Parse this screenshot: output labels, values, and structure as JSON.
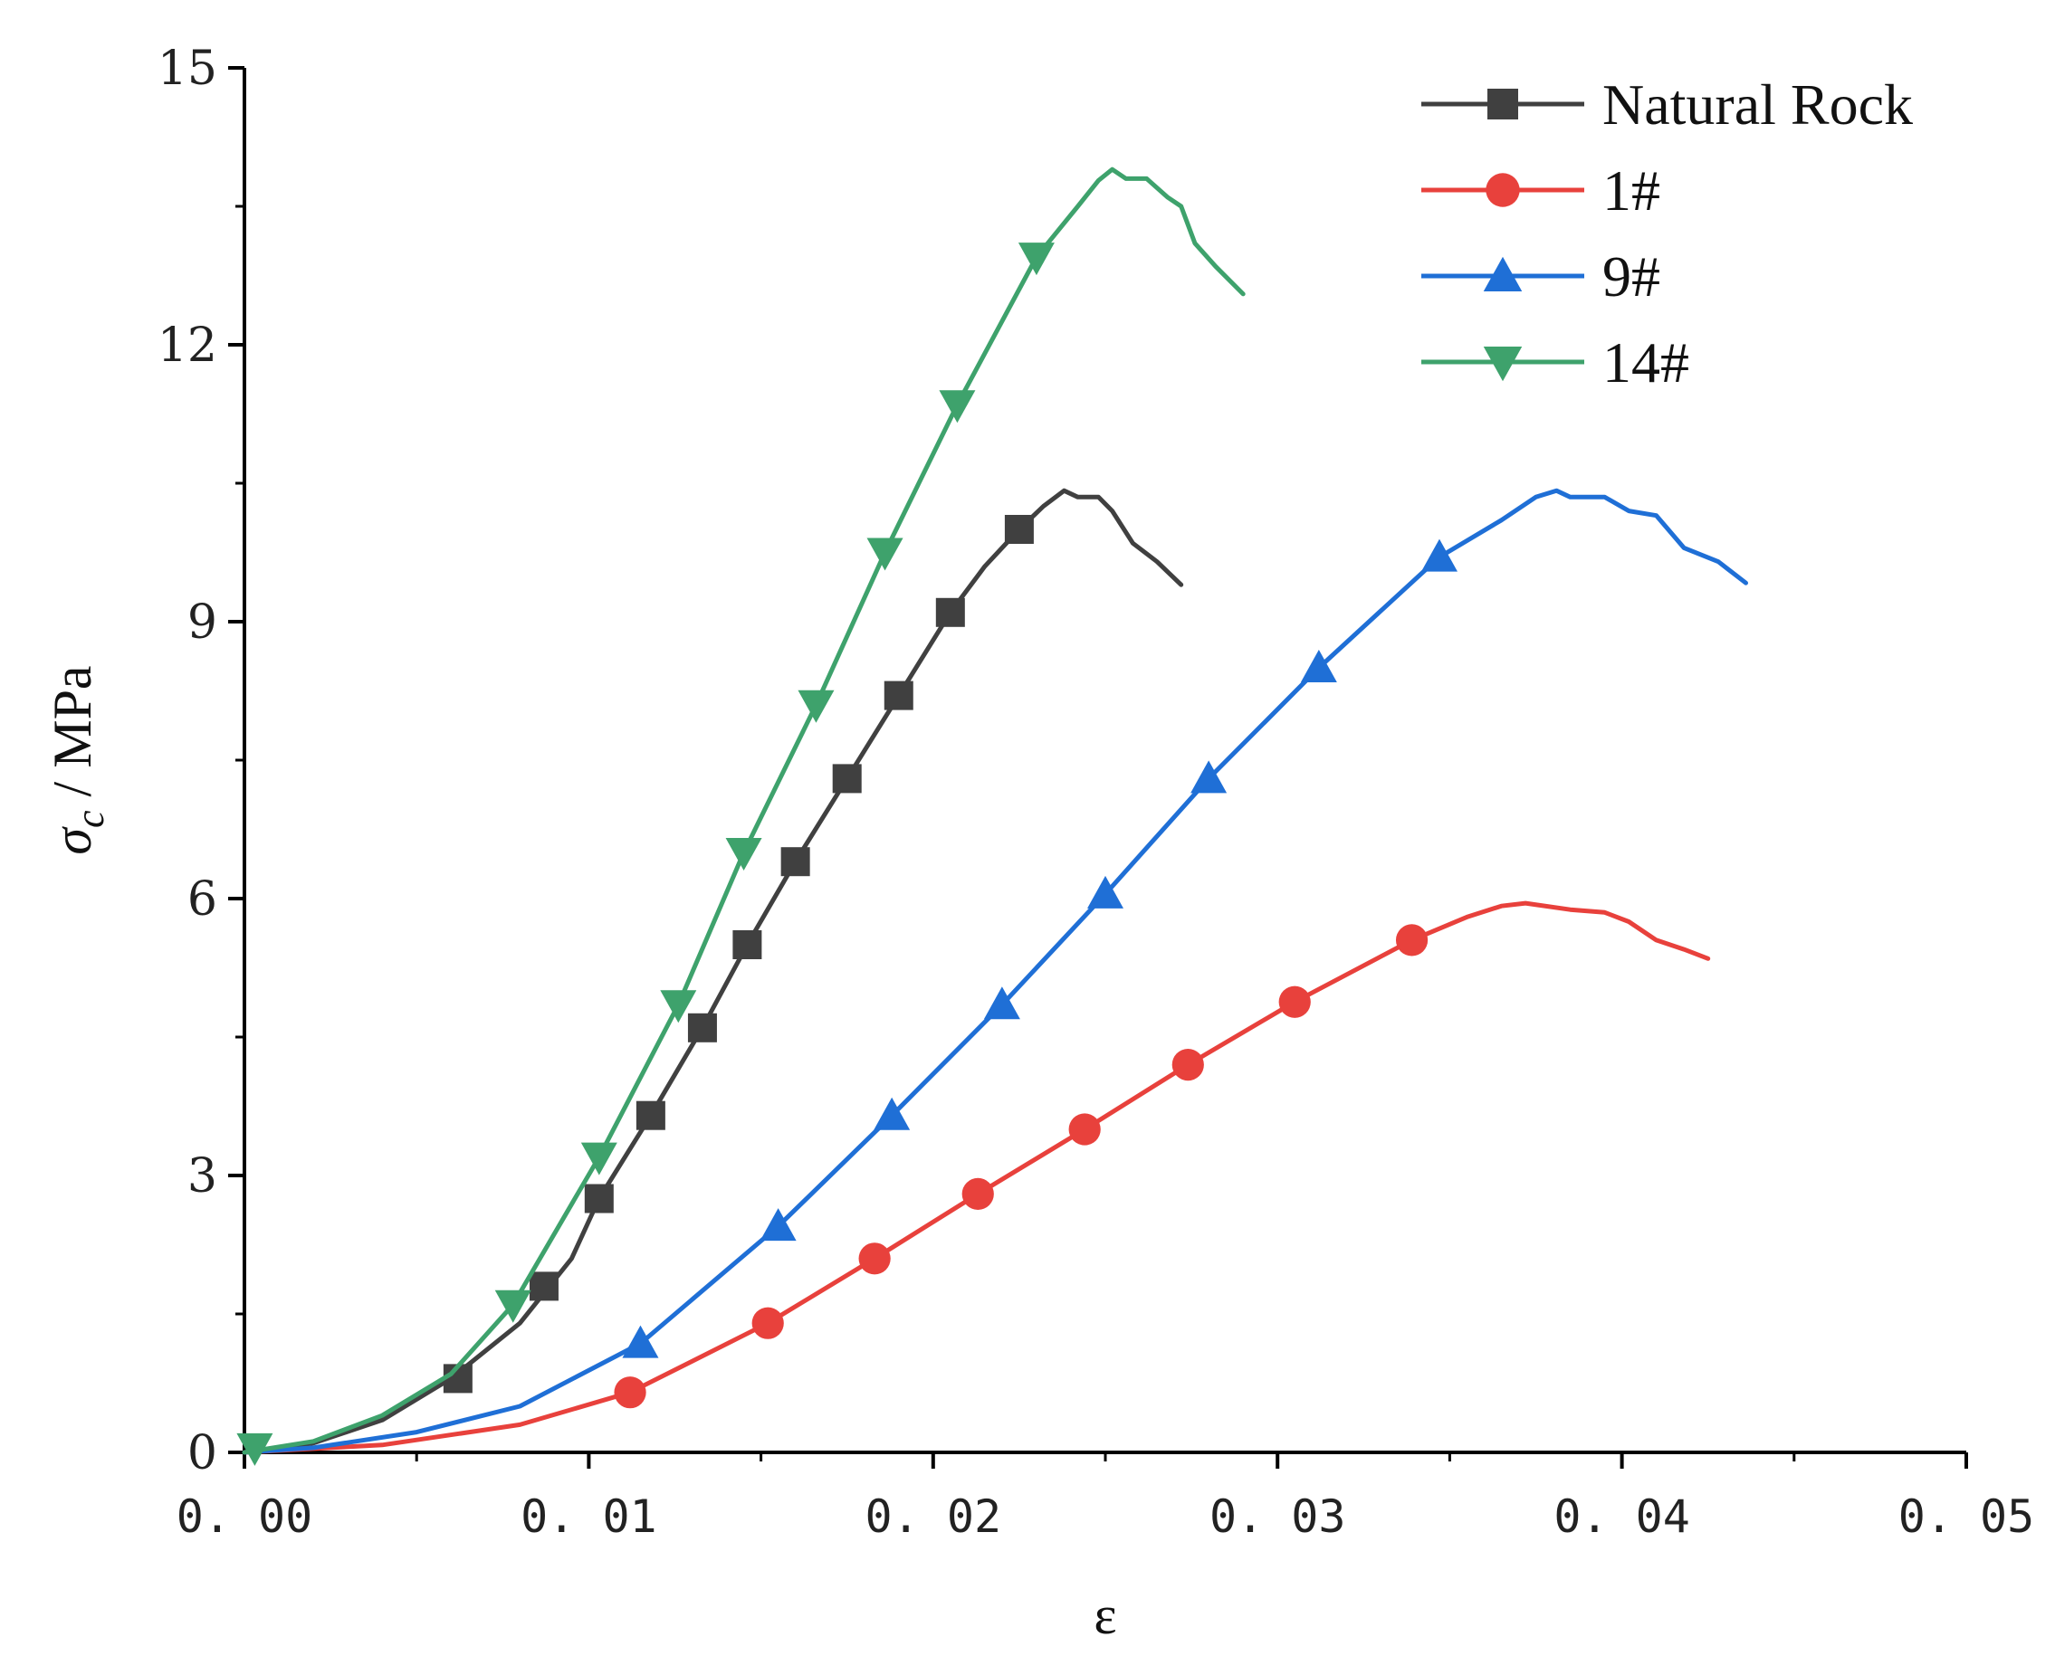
{
  "chart_data": {
    "type": "line",
    "title": "",
    "xlabel": "ε",
    "ylabel": {
      "symbol": "σ",
      "subscript": "c",
      "unit": " / MPa"
    },
    "xlim": [
      0,
      0.05
    ],
    "ylim": [
      0,
      15
    ],
    "x_ticks": [
      0,
      0.01,
      0.02,
      0.03,
      0.04,
      0.05
    ],
    "x_tick_labels": [
      "0. 00",
      "0. 01",
      "0. 02",
      "0. 03",
      "0. 04",
      "0. 05"
    ],
    "y_ticks": [
      0,
      3,
      6,
      9,
      12,
      15
    ],
    "y_tick_labels": [
      "0",
      "3",
      "6",
      "9",
      "12",
      "15"
    ],
    "grid": false,
    "legend_position": "top-right",
    "series": [
      {
        "name": "Natural Rock",
        "color": "#404040",
        "marker": "square",
        "x": [
          0,
          0.002,
          0.004,
          0.006,
          0.008,
          0.0095,
          0.0103,
          0.0118,
          0.0133,
          0.0146,
          0.016,
          0.0175,
          0.019,
          0.0205,
          0.0215,
          0.0225,
          0.0232,
          0.0238,
          0.0242,
          0.0248,
          0.0252,
          0.0258,
          0.0265,
          0.0272
        ],
        "y": [
          0,
          0.1,
          0.35,
          0.8,
          1.4,
          2.1,
          2.75,
          3.65,
          4.6,
          5.5,
          6.4,
          7.3,
          8.2,
          9.1,
          9.6,
          10.0,
          10.25,
          10.42,
          10.35,
          10.35,
          10.2,
          9.85,
          9.65,
          9.4
        ],
        "marker_x": [
          0.0062,
          0.0087,
          0.0103,
          0.0118,
          0.0133,
          0.0146,
          0.016,
          0.0175,
          0.019,
          0.0205,
          0.0225
        ],
        "marker_y": [
          0.8,
          1.8,
          2.75,
          3.65,
          4.6,
          5.5,
          6.4,
          7.3,
          8.2,
          9.1,
          10.0
        ]
      },
      {
        "name": "1#",
        "color": "#e8413c",
        "marker": "circle",
        "x": [
          0,
          0.004,
          0.008,
          0.0112,
          0.0152,
          0.0183,
          0.0213,
          0.0244,
          0.0274,
          0.0305,
          0.0339,
          0.0355,
          0.0365,
          0.0372,
          0.0385,
          0.0395,
          0.0402,
          0.041,
          0.0418,
          0.0425
        ],
        "y": [
          0,
          0.08,
          0.3,
          0.65,
          1.4,
          2.1,
          2.8,
          3.5,
          4.2,
          4.88,
          5.55,
          5.8,
          5.92,
          5.95,
          5.88,
          5.85,
          5.75,
          5.55,
          5.45,
          5.35
        ],
        "marker_x": [
          0.0112,
          0.0152,
          0.0183,
          0.0213,
          0.0244,
          0.0274,
          0.0305,
          0.0339
        ],
        "marker_y": [
          0.65,
          1.4,
          2.1,
          2.8,
          3.5,
          4.2,
          4.88,
          5.55
        ]
      },
      {
        "name": "9#",
        "color": "#1f6fd6",
        "marker": "triangle-up",
        "x": [
          0,
          0.002,
          0.005,
          0.008,
          0.0115,
          0.0155,
          0.0188,
          0.022,
          0.025,
          0.028,
          0.0312,
          0.0347,
          0.0365,
          0.0375,
          0.0381,
          0.0385,
          0.0395,
          0.0402,
          0.041,
          0.0418,
          0.0428,
          0.0436
        ],
        "y": [
          0,
          0.05,
          0.22,
          0.5,
          1.18,
          2.45,
          3.65,
          4.85,
          6.05,
          7.3,
          8.5,
          9.7,
          10.1,
          10.35,
          10.42,
          10.35,
          10.35,
          10.2,
          10.15,
          9.8,
          9.65,
          9.42
        ],
        "marker_x": [
          0.0115,
          0.0155,
          0.0188,
          0.022,
          0.025,
          0.028,
          0.0312,
          0.0347
        ],
        "marker_y": [
          1.18,
          2.45,
          3.65,
          4.85,
          6.05,
          7.3,
          8.5,
          9.7
        ]
      },
      {
        "name": "14#",
        "color": "#3ea26c",
        "marker": "triangle-down",
        "x": [
          0,
          0.002,
          0.004,
          0.006,
          0.0078,
          0.0103,
          0.0126,
          0.0145,
          0.0166,
          0.0186,
          0.0207,
          0.023,
          0.0242,
          0.0248,
          0.0252,
          0.0256,
          0.0262,
          0.0268,
          0.0272,
          0.0276,
          0.0282,
          0.029
        ],
        "y": [
          0,
          0.12,
          0.4,
          0.85,
          1.6,
          3.2,
          4.85,
          6.5,
          8.1,
          9.75,
          11.35,
          12.95,
          13.5,
          13.78,
          13.9,
          13.8,
          13.8,
          13.6,
          13.5,
          13.1,
          12.85,
          12.55
        ],
        "marker_x": [
          0.0003,
          0.0078,
          0.0103,
          0.0126,
          0.0145,
          0.0166,
          0.0186,
          0.0207,
          0.023
        ],
        "marker_y": [
          0.05,
          1.6,
          3.2,
          4.85,
          6.5,
          8.1,
          9.75,
          11.35,
          12.95
        ]
      }
    ]
  }
}
